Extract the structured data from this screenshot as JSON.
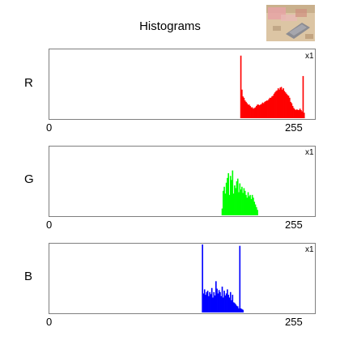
{
  "window": {
    "title": "Histograms"
  },
  "thumbnail": {
    "icon": "image-thumbnail"
  },
  "panels": [
    {
      "channel": "R",
      "color": "#ff0000",
      "scale_label": "x1",
      "x_min_label": "0",
      "x_max_label": "255",
      "hist": {
        "start": 184,
        "end": 245,
        "values": [
          0.92,
          0.42,
          0.32,
          0.3,
          0.26,
          0.24,
          0.22,
          0.2,
          0.2,
          0.18,
          0.16,
          0.16,
          0.14,
          0.15,
          0.16,
          0.18,
          0.2,
          0.2,
          0.19,
          0.2,
          0.21,
          0.23,
          0.22,
          0.24,
          0.25,
          0.26,
          0.26,
          0.28,
          0.3,
          0.3,
          0.32,
          0.33,
          0.36,
          0.38,
          0.4,
          0.41,
          0.44,
          0.42,
          0.45,
          0.46,
          0.42,
          0.44,
          0.4,
          0.38,
          0.36,
          0.34,
          0.33,
          0.3,
          0.24,
          0.22,
          0.18,
          0.15,
          0.13,
          0.12,
          0.13,
          0.12,
          0.12,
          0.14,
          0.12,
          0.1,
          0.62,
          0.08
        ]
      }
    },
    {
      "channel": "G",
      "color": "#00ff00",
      "scale_label": "x1",
      "x_min_label": "0",
      "x_max_label": "255",
      "hist": {
        "start": 166,
        "end": 200,
        "values": [
          0.1,
          0.36,
          0.42,
          0.32,
          0.48,
          0.55,
          0.62,
          0.3,
          0.58,
          0.52,
          0.66,
          0.32,
          0.44,
          0.4,
          0.5,
          0.54,
          0.34,
          0.47,
          0.38,
          0.42,
          0.33,
          0.4,
          0.36,
          0.3,
          0.26,
          0.34,
          0.28,
          0.3,
          0.24,
          0.3,
          0.26,
          0.2,
          0.16,
          0.12,
          0.08
        ]
      }
    },
    {
      "channel": "B",
      "color": "#0000ff",
      "scale_label": "x1",
      "x_min_label": "0",
      "x_max_label": "255",
      "hist": {
        "start": 147,
        "end": 186,
        "values": [
          1.0,
          0.28,
          0.34,
          0.26,
          0.3,
          0.32,
          0.24,
          0.3,
          0.27,
          0.36,
          0.22,
          0.3,
          0.25,
          0.46,
          0.35,
          0.28,
          0.33,
          0.3,
          0.24,
          0.38,
          0.22,
          0.32,
          0.25,
          0.28,
          0.34,
          0.26,
          0.22,
          0.3,
          0.18,
          0.26,
          0.15,
          0.14,
          0.12,
          0.1,
          0.09,
          0.06,
          0.98,
          0.06,
          0.05,
          0.04
        ]
      }
    }
  ]
}
